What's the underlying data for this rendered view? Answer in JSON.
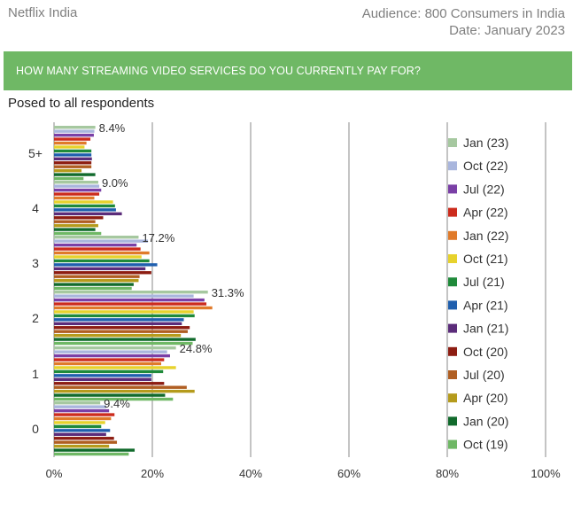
{
  "header": {
    "brand": "Netflix India",
    "audience": "Audience: 800 Consumers in India",
    "date": "Date: January 2023"
  },
  "banner": {
    "question": "HOW MANY STREAMING VIDEO SERVICES DO YOU CURRENTLY PAY FOR?"
  },
  "subtitle": "Posed to all respondents",
  "colors": {
    "banner": "#6fb865",
    "grid": "#888888"
  },
  "chart_data": {
    "type": "bar",
    "orientation": "horizontal",
    "categories": [
      "5+",
      "4",
      "3",
      "2",
      "1",
      "0"
    ],
    "xlim": [
      0,
      100
    ],
    "xticks": [
      "0%",
      "20%",
      "40%",
      "60%",
      "80%",
      "100%"
    ],
    "grid": true,
    "legend_position": "right",
    "annotations": [
      "8.4%",
      "9.0%",
      "17.2%",
      "31.3%",
      "24.8%",
      "9.4%"
    ],
    "series": [
      {
        "name": "Jan (23)",
        "color": "#a6c8a0",
        "values": [
          8.4,
          9.0,
          17.2,
          31.3,
          24.8,
          9.4
        ]
      },
      {
        "name": "Oct (22)",
        "color": "#a9b6dd",
        "values": [
          8.2,
          9.2,
          19.1,
          28.4,
          23.0,
          10.6
        ]
      },
      {
        "name": "Jul (22)",
        "color": "#7a3fa6",
        "values": [
          8.1,
          9.6,
          16.8,
          30.6,
          23.6,
          11.2
        ]
      },
      {
        "name": "Apr (22)",
        "color": "#cc2b1d",
        "values": [
          7.4,
          9.2,
          17.6,
          31.0,
          22.4,
          12.3
        ]
      },
      {
        "name": "Jan (22)",
        "color": "#e07a2a",
        "values": [
          6.6,
          8.2,
          19.4,
          32.2,
          21.8,
          11.6
        ]
      },
      {
        "name": "Oct (21)",
        "color": "#e7d22c",
        "values": [
          6.2,
          12.0,
          17.8,
          28.4,
          24.8,
          10.4
        ]
      },
      {
        "name": "Jul (21)",
        "color": "#1f8a3a",
        "values": [
          7.6,
          12.4,
          19.4,
          28.6,
          22.2,
          9.6
        ]
      },
      {
        "name": "Apr (21)",
        "color": "#1f5fae",
        "values": [
          7.6,
          12.6,
          21.0,
          26.4,
          19.8,
          11.4
        ]
      },
      {
        "name": "Jan (21)",
        "color": "#5b2c7a",
        "values": [
          7.7,
          13.8,
          18.6,
          26.0,
          19.8,
          10.6
        ]
      },
      {
        "name": "Oct (20)",
        "color": "#8d1d12",
        "values": [
          7.6,
          10.0,
          19.8,
          27.6,
          22.4,
          12.2
        ]
      },
      {
        "name": "Jul (20)",
        "color": "#b05e22",
        "values": [
          7.6,
          8.4,
          17.4,
          27.2,
          27.0,
          12.8
        ]
      },
      {
        "name": "Apr (20)",
        "color": "#b59b1c",
        "values": [
          5.6,
          9.0,
          17.2,
          25.8,
          28.6,
          11.2
        ]
      },
      {
        "name": "Jan (20)",
        "color": "#116a2c",
        "values": [
          8.4,
          8.4,
          16.2,
          28.8,
          22.6,
          16.4
        ]
      },
      {
        "name": "Oct (19)",
        "color": "#6fb865",
        "values": [
          6.0,
          9.6,
          15.8,
          28.2,
          24.2,
          15.2
        ]
      }
    ]
  }
}
